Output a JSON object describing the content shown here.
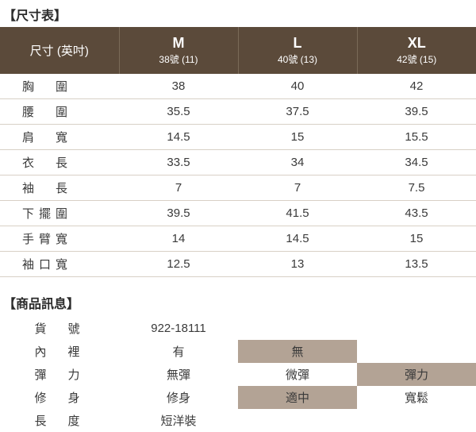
{
  "sizeSection": {
    "title": "【尺寸表】",
    "headerLabel": "尺寸 (英吋)",
    "columns": [
      {
        "main": "M",
        "sub": "38號 (11)"
      },
      {
        "main": "L",
        "sub": "40號 (13)"
      },
      {
        "main": "XL",
        "sub": "42號 (15)"
      }
    ],
    "rows": [
      {
        "label": "胸　圍",
        "v": [
          "38",
          "40",
          "42"
        ]
      },
      {
        "label": "腰　圍",
        "v": [
          "35.5",
          "37.5",
          "39.5"
        ]
      },
      {
        "label": "肩　寬",
        "v": [
          "14.5",
          "15",
          "15.5"
        ]
      },
      {
        "label": "衣　長",
        "v": [
          "33.5",
          "34",
          "34.5"
        ]
      },
      {
        "label": "袖　長",
        "v": [
          "7",
          "7",
          "7.5"
        ]
      },
      {
        "label": "下擺圍",
        "v": [
          "39.5",
          "41.5",
          "43.5"
        ]
      },
      {
        "label": "手臂寬",
        "v": [
          "14",
          "14.5",
          "15"
        ]
      },
      {
        "label": "袖口寬",
        "v": [
          "12.5",
          "13",
          "13.5"
        ]
      }
    ]
  },
  "infoSection": {
    "title": "【商品訊息】",
    "rows": [
      {
        "label": "貨　號",
        "cells": [
          {
            "t": "922-18111",
            "hl": false
          },
          {
            "t": "",
            "hl": false
          },
          {
            "t": "",
            "hl": false
          }
        ]
      },
      {
        "label": "內　裡",
        "cells": [
          {
            "t": "有",
            "hl": false
          },
          {
            "t": "無",
            "hl": true
          },
          {
            "t": "",
            "hl": false
          }
        ]
      },
      {
        "label": "彈　力",
        "cells": [
          {
            "t": "無彈",
            "hl": false
          },
          {
            "t": "微彈",
            "hl": false
          },
          {
            "t": "彈力",
            "hl": true
          }
        ]
      },
      {
        "label": "修　身",
        "cells": [
          {
            "t": "修身",
            "hl": false
          },
          {
            "t": "適中",
            "hl": true
          },
          {
            "t": "寬鬆",
            "hl": false
          }
        ]
      },
      {
        "label": "長　度",
        "cells": [
          {
            "t": "短洋裝",
            "hl": false
          },
          {
            "t": "",
            "hl": false
          },
          {
            "t": "",
            "hl": false
          }
        ]
      }
    ]
  },
  "style": {
    "headerBg": "#5b4a3a",
    "headerText": "#ffffff",
    "rowBorder": "#d8d0c6",
    "highlightBg": "#b3a395",
    "bodyText": "#3a3a3a"
  }
}
